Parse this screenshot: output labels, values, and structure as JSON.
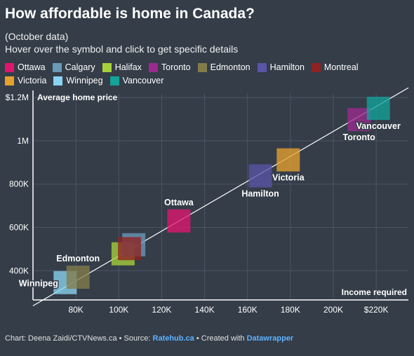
{
  "header": {
    "title": "How affordable is home in Canada?",
    "subtitle1": "(October data)",
    "subtitle2": "Hover over the symbol and click to get specific details"
  },
  "legend": [
    {
      "label": "Ottawa",
      "color": "#e0166e"
    },
    {
      "label": "Calgary",
      "color": "#6b99b8"
    },
    {
      "label": "Halifax",
      "color": "#a6d13a"
    },
    {
      "label": "Toronto",
      "color": "#9b2a8f"
    },
    {
      "label": "Edmonton",
      "color": "#837c4a"
    },
    {
      "label": "Hamilton",
      "color": "#5a55a6"
    },
    {
      "label": "Montreal",
      "color": "#8e2323"
    },
    {
      "label": "Victoria",
      "color": "#e5a02d"
    },
    {
      "label": "Winnipeg",
      "color": "#8ad3f0"
    },
    {
      "label": "Vancouver",
      "color": "#13a39a"
    }
  ],
  "chart_data": {
    "type": "scatter",
    "xlabel": "Income required",
    "ylabel": "Average home price",
    "xlim": [
      60000,
      235000
    ],
    "ylim": [
      265000,
      1220000
    ],
    "xticks": [
      {
        "v": 80000,
        "label": "80K"
      },
      {
        "v": 100000,
        "label": "100K"
      },
      {
        "v": 120000,
        "label": "120K"
      },
      {
        "v": 140000,
        "label": "140K"
      },
      {
        "v": 160000,
        "label": "160K"
      },
      {
        "v": 180000,
        "label": "180K"
      },
      {
        "v": 200000,
        "label": "200K"
      },
      {
        "v": 220000,
        "label": "$220K"
      }
    ],
    "yticks": [
      {
        "v": 400000,
        "label": "400K"
      },
      {
        "v": 600000,
        "label": "600K"
      },
      {
        "v": 800000,
        "label": "800K"
      },
      {
        "v": 1000000,
        "label": "1M"
      },
      {
        "v": 1200000,
        "label": "$1.2M"
      }
    ],
    "grid": true,
    "points": [
      {
        "name": "Winnipeg",
        "x": 75000,
        "y": 345000,
        "color": "#8ad3f0",
        "label": "Winnipeg",
        "labelPos": "left"
      },
      {
        "name": "Edmonton",
        "x": 81000,
        "y": 370000,
        "color": "#837c4a",
        "label": "Edmonton",
        "labelPos": "above"
      },
      {
        "name": "Halifax",
        "x": 102000,
        "y": 478000,
        "color": "#a6d13a",
        "label": "",
        "labelPos": ""
      },
      {
        "name": "Calgary",
        "x": 107000,
        "y": 520000,
        "color": "#6b99b8",
        "label": "",
        "labelPos": ""
      },
      {
        "name": "Montreal",
        "x": 105000,
        "y": 502000,
        "color": "#8e2323",
        "label": "",
        "labelPos": ""
      },
      {
        "name": "Ottawa",
        "x": 128000,
        "y": 630000,
        "color": "#e0166e",
        "label": "Ottawa",
        "labelPos": "above"
      },
      {
        "name": "Hamilton",
        "x": 166000,
        "y": 838000,
        "color": "#5a55a6",
        "label": "Hamilton",
        "labelPos": "below"
      },
      {
        "name": "Victoria",
        "x": 179000,
        "y": 912000,
        "color": "#e5a02d",
        "label": "Victoria",
        "labelPos": "below"
      },
      {
        "name": "Toronto",
        "x": 212000,
        "y": 1098000,
        "color": "#9b2a8f",
        "label": "Toronto",
        "labelPos": "below"
      },
      {
        "name": "Vancouver",
        "x": 221000,
        "y": 1150000,
        "color": "#13a39a",
        "label": "Vancouver",
        "labelPos": "below"
      }
    ],
    "trendline": {
      "x": [
        60000,
        235000
      ],
      "y": [
        238000,
        1245000
      ]
    }
  },
  "footer": {
    "prefix": "Chart: Deena Zaidi/CTVNews.ca • Source: ",
    "source": "Ratehub.ca",
    "mid": " • Created with ",
    "tool": "Datawrapper"
  }
}
